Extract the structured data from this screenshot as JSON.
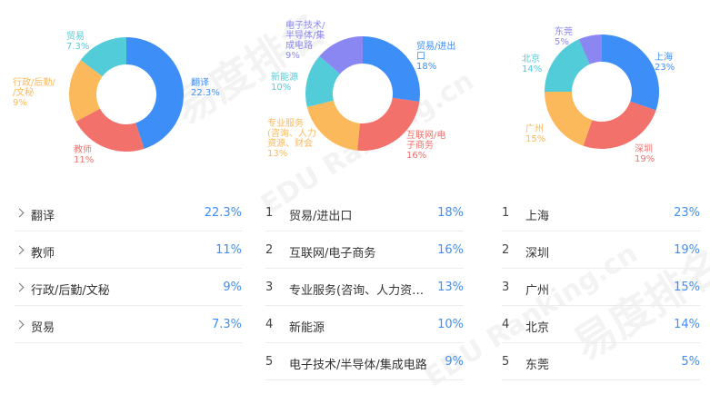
{
  "watermark": {
    "brand": "易度排名",
    "en": "EDU Ranking.cn"
  },
  "panels": [
    {
      "id": "industry",
      "colors": [
        "#3e8ef7",
        "#f2716b",
        "#fcb95b",
        "#52ccd9"
      ],
      "labels": [
        {
          "text": "翻译\n22.3%"
        },
        {
          "text": "教师\n11%"
        },
        {
          "text": "行政/后勤/\n/文秘\n9%"
        },
        {
          "text": "贸易\n7.3%"
        }
      ],
      "rows": [
        {
          "rank": "",
          "name": "翻译",
          "value": "22.3%"
        },
        {
          "rank": "",
          "name": "教师",
          "value": "11%"
        },
        {
          "rank": "",
          "name": "行政/后勤/文秘",
          "value": "9%"
        },
        {
          "rank": "",
          "name": "贸易",
          "value": "7.3%"
        }
      ]
    },
    {
      "id": "sector",
      "colors": [
        "#3e8ef7",
        "#f2716b",
        "#fcb95b",
        "#52ccd9",
        "#8a86f2"
      ],
      "labels": [
        {
          "text": "贸易/进出\n口\n18%"
        },
        {
          "text": "互联网/电\n子商务\n16%"
        },
        {
          "text": "专业服务\n(咨询、人力\n资源、财会\n13%"
        },
        {
          "text": "新能源\n10%"
        },
        {
          "text": "电子技术/\n半导体/集\n成电路\n9%"
        }
      ],
      "rows": [
        {
          "rank": "1",
          "name": "贸易/进出口",
          "value": "18%"
        },
        {
          "rank": "2",
          "name": "互联网/电子商务",
          "value": "16%"
        },
        {
          "rank": "3",
          "name": "专业服务(咨询、人力资源、财会)",
          "value": "13%"
        },
        {
          "rank": "4",
          "name": "新能源",
          "value": "10%"
        },
        {
          "rank": "5",
          "name": "电子技术/半导体/集成电路",
          "value": "9%"
        }
      ]
    },
    {
      "id": "city",
      "colors": [
        "#3e8ef7",
        "#f2716b",
        "#fcb95b",
        "#52ccd9",
        "#8a86f2"
      ],
      "labels": [
        {
          "text": "上海\n23%"
        },
        {
          "text": "深圳\n19%"
        },
        {
          "text": "广州\n15%"
        },
        {
          "text": "北京\n14%"
        },
        {
          "text": "东莞\n5%"
        }
      ],
      "rows": [
        {
          "rank": "1",
          "name": "上海",
          "value": "23%"
        },
        {
          "rank": "2",
          "name": "深圳",
          "value": "19%"
        },
        {
          "rank": "3",
          "name": "广州",
          "value": "15%"
        },
        {
          "rank": "4",
          "name": "北京",
          "value": "14%"
        },
        {
          "rank": "5",
          "name": "东莞",
          "value": "5%"
        }
      ]
    }
  ],
  "chart_data": [
    {
      "type": "pie",
      "categories": [
        "翻译",
        "教师",
        "行政/后勤/文秘",
        "贸易"
      ],
      "values": [
        22.3,
        11,
        9,
        7.3
      ]
    },
    {
      "type": "pie",
      "categories": [
        "贸易/进出口",
        "互联网/电子商务",
        "专业服务(咨询、人力资源、财会)",
        "新能源",
        "电子技术/半导体/集成电路"
      ],
      "values": [
        18,
        16,
        13,
        10,
        9
      ]
    },
    {
      "type": "pie",
      "categories": [
        "上海",
        "深圳",
        "广州",
        "北京",
        "东莞"
      ],
      "values": [
        23,
        19,
        15,
        14,
        5
      ]
    }
  ]
}
